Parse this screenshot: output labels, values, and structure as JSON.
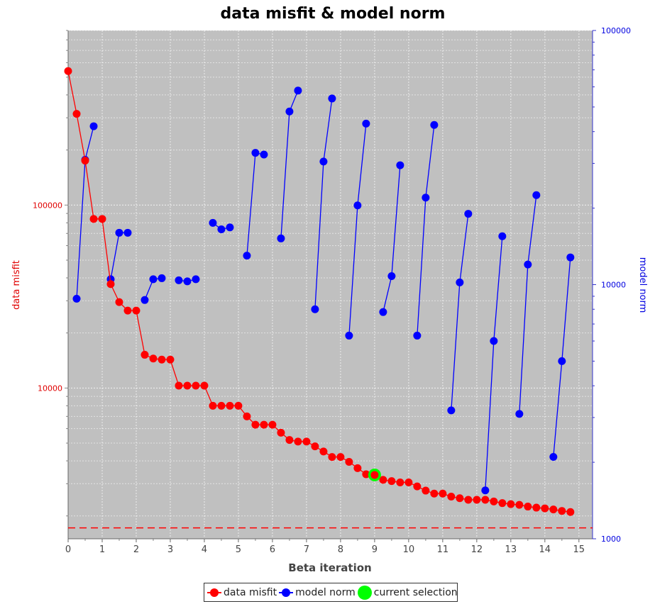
{
  "chart_data": {
    "type": "line",
    "title": "data misfit & model norm",
    "xlabel": "Beta iteration",
    "ylabel_left": "data misfit",
    "ylabel_right": "model norm",
    "xlim": [
      0,
      15.4
    ],
    "x_ticks": [
      0,
      1,
      2,
      3,
      4,
      5,
      6,
      7,
      8,
      9,
      10,
      11,
      12,
      13,
      14,
      15
    ],
    "y_left": {
      "scale": "log",
      "lim": [
        1500,
        900000
      ],
      "ticks": [
        10000,
        100000
      ],
      "tick_labels": [
        "10000",
        "100000"
      ]
    },
    "y_right": {
      "scale": "log",
      "lim": [
        1000,
        100000
      ],
      "ticks": [
        1000,
        10000,
        100000
      ],
      "tick_labels": [
        "1000",
        "10000",
        "100000"
      ]
    },
    "grid": true,
    "legend_position": "bottom",
    "colors": {
      "data_misfit": "#ff0000",
      "model_norm": "#0000ff",
      "current_selection": "#00ff00",
      "plot_bg": "#c0c0c0",
      "target_line": "#ff0000"
    },
    "target_misfit": 1720,
    "current_selection": {
      "x": 9.0,
      "y": 3350
    },
    "data_misfit": {
      "name": "data misfit",
      "x": [
        0.0,
        0.25,
        0.5,
        0.75,
        1.0,
        1.25,
        1.5,
        1.75,
        2.0,
        2.25,
        2.5,
        2.75,
        3.0,
        3.25,
        3.5,
        3.75,
        4.0,
        4.25,
        4.5,
        4.75,
        5.0,
        5.25,
        5.5,
        5.75,
        6.0,
        6.25,
        6.5,
        6.75,
        7.0,
        7.25,
        7.5,
        7.75,
        8.0,
        8.25,
        8.5,
        8.75,
        9.0,
        9.25,
        9.5,
        9.75,
        10.0,
        10.25,
        10.5,
        10.75,
        11.0,
        11.25,
        11.5,
        11.75,
        12.0,
        12.25,
        12.5,
        12.75,
        13.0,
        13.25,
        13.5,
        13.75,
        14.0,
        14.25,
        14.5,
        14.75
      ],
      "y": [
        540000,
        315000,
        175000,
        84000,
        84000,
        37000,
        29500,
        26500,
        26500,
        15200,
        14500,
        14300,
        14300,
        10300,
        10300,
        10300,
        10300,
        8000,
        8000,
        8000,
        8000,
        7000,
        6300,
        6300,
        6300,
        5700,
        5200,
        5100,
        5100,
        4800,
        4500,
        4200,
        4200,
        3950,
        3650,
        3380,
        3350,
        3150,
        3100,
        3050,
        3050,
        2900,
        2750,
        2650,
        2650,
        2550,
        2500,
        2450,
        2450,
        2450,
        2400,
        2350,
        2320,
        2300,
        2250,
        2220,
        2200,
        2170,
        2130,
        2100
      ]
    },
    "model_norm": {
      "name": "model norm",
      "x": [
        0.25,
        0.5,
        0.75,
        1.25,
        1.5,
        1.75,
        2.25,
        2.5,
        2.75,
        3.25,
        3.5,
        3.75,
        4.25,
        4.5,
        4.75,
        5.25,
        5.5,
        5.75,
        6.25,
        6.5,
        6.75,
        7.25,
        7.5,
        7.75,
        8.25,
        8.5,
        8.75,
        9.25,
        9.5,
        9.75,
        10.25,
        10.5,
        10.75,
        11.25,
        11.5,
        11.75,
        12.25,
        12.5,
        12.75,
        13.25,
        13.5,
        13.75,
        14.25,
        14.5,
        14.75
      ],
      "y": [
        8800,
        31000,
        42000,
        10500,
        16000,
        16000,
        8700,
        10500,
        10600,
        10400,
        10300,
        10500,
        17500,
        16500,
        16800,
        13000,
        33000,
        32500,
        15200,
        48000,
        58000,
        8000,
        30500,
        54000,
        6300,
        20500,
        43000,
        7800,
        10800,
        29500,
        6300,
        22000,
        42500,
        3200,
        10200,
        19000,
        1550,
        6000,
        15500,
        3100,
        12000,
        22500,
        2100,
        5000,
        12800
      ]
    },
    "model_norm_segments": [
      [
        0,
        1,
        2
      ],
      [
        3,
        4,
        5
      ],
      [
        6,
        7,
        8
      ],
      [
        9,
        10,
        11
      ],
      [
        12,
        13,
        14
      ],
      [
        15,
        16,
        17
      ],
      [
        18,
        19,
        20
      ],
      [
        21,
        22,
        23
      ],
      [
        24,
        25,
        26
      ],
      [
        27,
        28,
        29
      ],
      [
        30,
        31,
        32
      ],
      [
        33,
        34,
        35
      ],
      [
        36,
        37,
        38
      ],
      [
        39,
        40,
        41
      ],
      [
        42,
        43,
        44
      ]
    ]
  },
  "legend": {
    "items": [
      {
        "label": "data misfit",
        "color": "#ff0000"
      },
      {
        "label": "model norm",
        "color": "#0000ff"
      },
      {
        "label": "current selection",
        "color": "#00ff00"
      }
    ]
  }
}
